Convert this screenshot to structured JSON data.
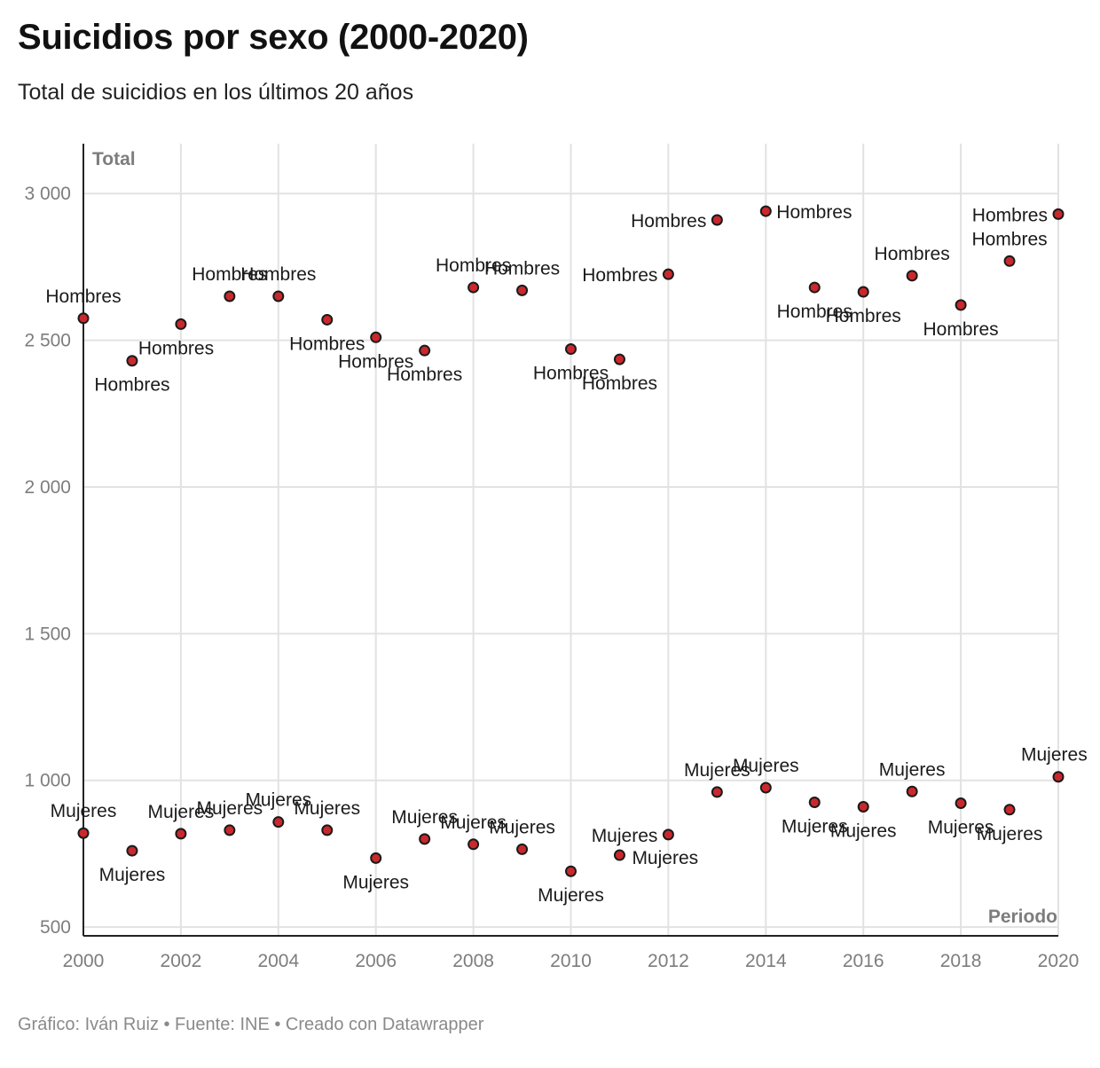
{
  "header": {
    "title": "Suicidios por sexo (2000-2020)",
    "subtitle": "Total de suicidios en los últimos 20 años"
  },
  "footer": {
    "credit": "Gráfico: Iván Ruiz • Fuente: INE • Creado con Datawrapper"
  },
  "chart_data": {
    "type": "scatter",
    "ylabel": "Total",
    "xlabel": "Periodo",
    "xlim": [
      2000,
      2020
    ],
    "ylim": [
      470,
      3170
    ],
    "x_ticks": [
      2000,
      2002,
      2004,
      2006,
      2008,
      2010,
      2012,
      2014,
      2016,
      2018,
      2020
    ],
    "y_ticks": [
      500,
      1000,
      1500,
      2000,
      2500,
      3000
    ],
    "y_tick_labels": [
      "500",
      "1 000",
      "1 500",
      "2 000",
      "2 500",
      "3 000"
    ],
    "grid": true,
    "marker_color": "#c9282d",
    "marker_edge": "#1a1a1a",
    "series": [
      {
        "name": "Hombres",
        "x": [
          2000,
          2001,
          2002,
          2003,
          2004,
          2005,
          2006,
          2007,
          2008,
          2009,
          2010,
          2011,
          2012,
          2013,
          2014,
          2015,
          2016,
          2017,
          2018,
          2019,
          2020
        ],
        "values": [
          2575,
          2430,
          2555,
          2650,
          2650,
          2570,
          2510,
          2465,
          2680,
          2670,
          2470,
          2435,
          2725,
          2910,
          2940,
          2680,
          2665,
          2720,
          2620,
          2770,
          2930
        ],
        "point_labels": [
          "Hombres",
          "Hombres",
          "Hombres",
          "Hombres",
          "Hombres",
          "Hombres",
          "Hombres",
          "Hombres",
          "Hombres",
          "Hombres",
          "Hombres",
          "Hombres",
          "Hombres",
          "Hombres",
          "Hombres",
          "Hombres",
          "Hombres",
          "Hombres",
          "Hombres",
          "Hombres",
          "Hombres"
        ]
      },
      {
        "name": "Mujeres",
        "x": [
          2000,
          2001,
          2002,
          2003,
          2004,
          2005,
          2006,
          2007,
          2008,
          2009,
          2010,
          2011,
          2012,
          2013,
          2014,
          2015,
          2016,
          2017,
          2018,
          2019,
          2020
        ],
        "values": [
          820,
          760,
          818,
          830,
          858,
          830,
          735,
          800,
          782,
          765,
          690,
          745,
          815,
          960,
          975,
          925,
          910,
          962,
          922,
          900,
          1012
        ],
        "point_labels": [
          "Mujeres",
          "Mujeres",
          "Mujeres",
          "Mujeres",
          "Mujeres",
          "Mujeres",
          "Mujeres",
          "Mujeres",
          "Mujeres",
          "Mujeres",
          "Mujeres",
          "Mujeres",
          "Mujeres",
          "Mujeres",
          "Mujeres",
          "Mujeres",
          "Mujeres",
          "Mujeres",
          "Mujeres",
          "Mujeres",
          "Mujeres"
        ]
      }
    ]
  }
}
